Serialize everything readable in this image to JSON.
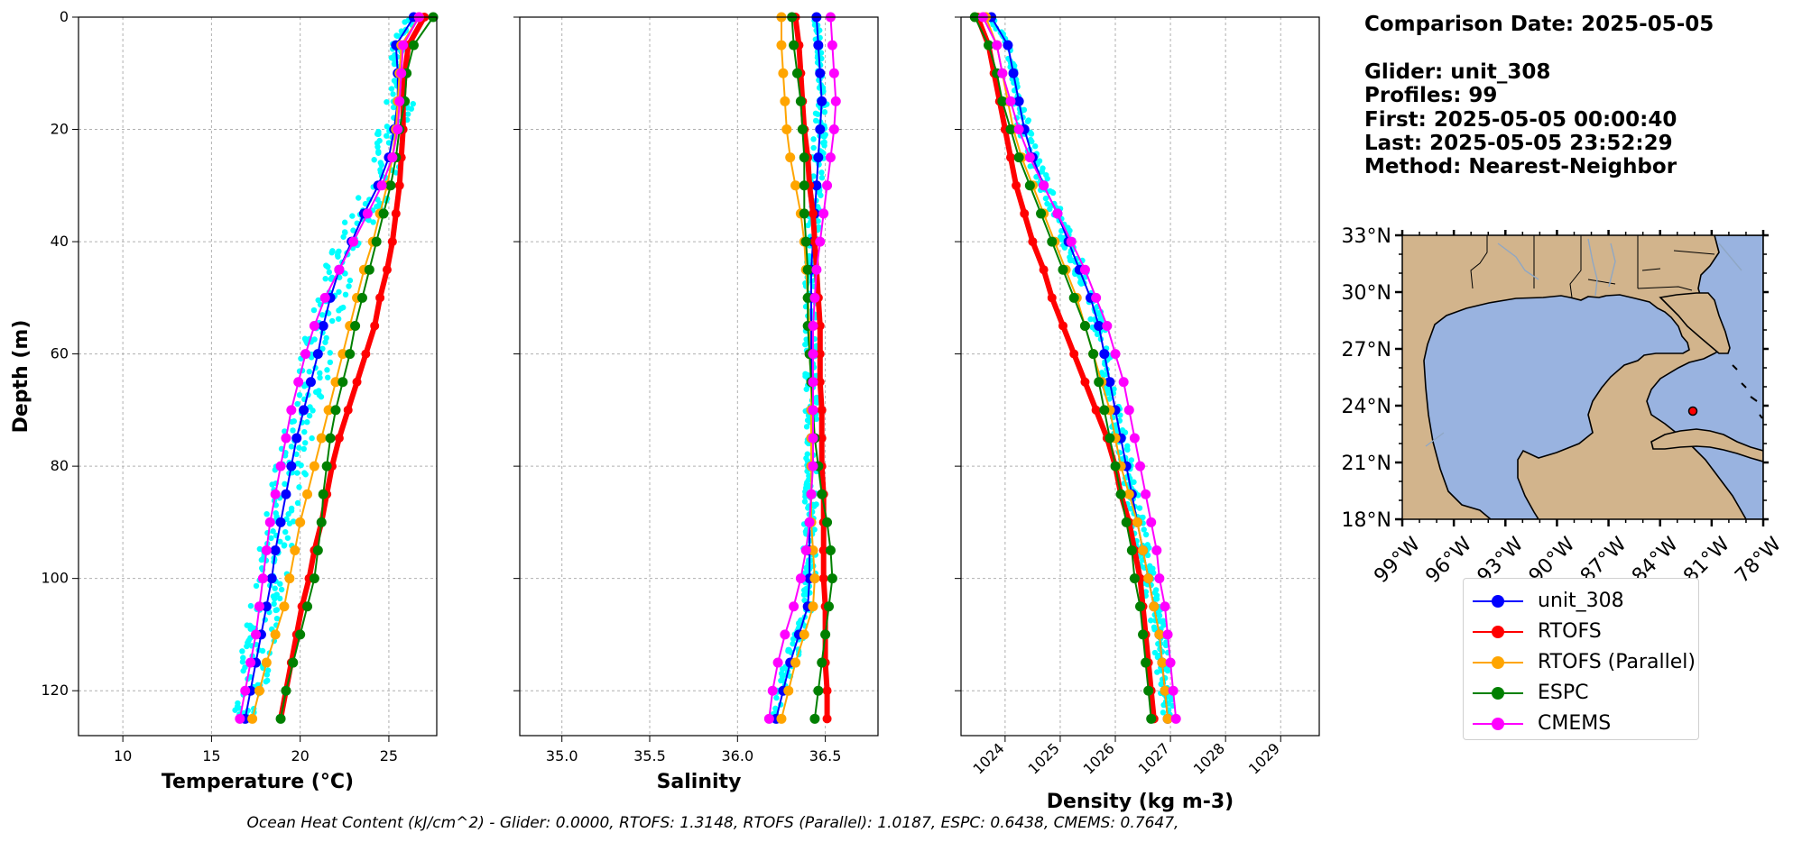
{
  "info": {
    "comparison_date": "Comparison Date: 2025-05-05",
    "glider": "Glider: unit_308",
    "profiles": "Profiles: 99",
    "first": "First: 2025-05-05 00:00:40",
    "last": "Last: 2025-05-05 23:52:29",
    "method": "Method: Nearest-Neighbor"
  },
  "footer": "Ocean Heat Content (kJ/cm^2) - Glider: 0.0000,  RTOFS: 1.3148,  RTOFS (Parallel): 1.0187,  ESPC: 0.6438,  CMEMS: 0.7647,",
  "colors": {
    "unit_308": "#0000ff",
    "RTOFS": "#ff0000",
    "RTOFS (Parallel)": "#ffa500",
    "ESPC": "#008000",
    "CMEMS": "#ff00ff",
    "glider_scatter": "#00ffff",
    "land": "#d2b48c",
    "ocean": "#99b3e0"
  },
  "legend": [
    "unit_308",
    "RTOFS",
    "RTOFS (Parallel)",
    "ESPC",
    "CMEMS"
  ],
  "chart_data": [
    {
      "type": "line",
      "xlabel": "Temperature (°C)",
      "ylabel": "Depth (m)",
      "xlim": [
        7.5,
        27.7
      ],
      "ylim": [
        128,
        0
      ],
      "xticks": [
        10,
        15,
        20,
        25
      ],
      "yticks": [
        0,
        20,
        40,
        60,
        80,
        100,
        120
      ],
      "grid": true,
      "depth": [
        0,
        5,
        10,
        15,
        20,
        25,
        30,
        35,
        40,
        45,
        50,
        55,
        60,
        65,
        70,
        75,
        80,
        85,
        90,
        95,
        100,
        105,
        110,
        115,
        120,
        125
      ],
      "series": [
        {
          "name": "unit_308",
          "values": [
            26.4,
            25.4,
            25.5,
            25.5,
            25.3,
            25.0,
            24.4,
            23.6,
            22.9,
            22.2,
            21.7,
            21.3,
            21.0,
            20.6,
            20.2,
            19.8,
            19.5,
            19.2,
            18.9,
            18.6,
            18.4,
            18.1,
            17.8,
            17.5,
            17.2,
            16.9
          ]
        },
        {
          "name": "RTOFS",
          "values": [
            27.0,
            26.1,
            25.9,
            25.8,
            25.8,
            25.7,
            25.6,
            25.4,
            25.2,
            24.9,
            24.5,
            24.2,
            23.7,
            23.2,
            22.7,
            22.2,
            21.8,
            21.5,
            21.2,
            20.8,
            20.5,
            20.1,
            19.8,
            19.5,
            19.2,
            18.9
          ]
        },
        {
          "name": "RTOFS (Parallel)",
          "values": [
            26.7,
            25.7,
            25.6,
            25.5,
            25.4,
            25.2,
            24.9,
            24.5,
            24.1,
            23.6,
            23.2,
            22.8,
            22.4,
            22.0,
            21.6,
            21.2,
            20.8,
            20.4,
            20.0,
            19.7,
            19.4,
            19.1,
            18.6,
            18.1,
            17.7,
            17.3
          ]
        },
        {
          "name": "ESPC",
          "values": [
            27.5,
            26.4,
            26.0,
            25.9,
            25.6,
            25.4,
            25.1,
            24.7,
            24.3,
            23.9,
            23.5,
            23.1,
            22.8,
            22.4,
            22.0,
            21.7,
            21.5,
            21.3,
            21.2,
            21.0,
            20.8,
            20.4,
            20.0,
            19.6,
            19.2,
            18.9
          ]
        },
        {
          "name": "CMEMS",
          "values": [
            26.7,
            25.8,
            25.7,
            25.6,
            25.5,
            25.2,
            24.6,
            23.8,
            23.0,
            22.2,
            21.4,
            20.8,
            20.3,
            19.9,
            19.5,
            19.2,
            18.9,
            18.6,
            18.3,
            18.1,
            17.9,
            17.7,
            17.5,
            17.2,
            16.9,
            16.6
          ]
        }
      ]
    },
    {
      "type": "line",
      "xlabel": "Salinity",
      "ylim": [
        128,
        0
      ],
      "xlim": [
        34.76,
        36.8
      ],
      "xticks": [
        35.0,
        35.5,
        36.0,
        36.5
      ],
      "grid": true,
      "depth": [
        0,
        5,
        10,
        15,
        20,
        25,
        30,
        35,
        40,
        45,
        50,
        55,
        60,
        65,
        70,
        75,
        80,
        85,
        90,
        95,
        100,
        105,
        110,
        115,
        120,
        125
      ],
      "series": [
        {
          "name": "unit_308",
          "values": [
            36.45,
            36.46,
            36.47,
            36.48,
            36.47,
            36.46,
            36.45,
            36.44,
            36.43,
            36.42,
            36.42,
            36.42,
            36.42,
            36.42,
            36.42,
            36.42,
            36.42,
            36.42,
            36.41,
            36.41,
            36.41,
            36.4,
            36.35,
            36.3,
            36.26,
            36.22
          ]
        },
        {
          "name": "RTOFS",
          "values": [
            36.33,
            36.35,
            36.36,
            36.37,
            36.38,
            36.4,
            36.41,
            36.43,
            36.44,
            36.45,
            36.46,
            36.47,
            36.47,
            36.47,
            36.48,
            36.48,
            36.48,
            36.49,
            36.49,
            36.49,
            36.49,
            36.5,
            36.5,
            36.5,
            36.51,
            36.51
          ]
        },
        {
          "name": "RTOFS (Parallel)",
          "values": [
            36.25,
            36.25,
            36.26,
            36.27,
            36.28,
            36.3,
            36.33,
            36.36,
            36.38,
            36.39,
            36.4,
            36.41,
            36.41,
            36.42,
            36.42,
            36.42,
            36.42,
            36.42,
            36.42,
            36.43,
            36.44,
            36.43,
            36.38,
            36.33,
            36.29,
            36.25
          ]
        },
        {
          "name": "ESPC",
          "values": [
            36.31,
            36.32,
            36.34,
            36.36,
            36.37,
            36.38,
            36.38,
            36.38,
            36.39,
            36.4,
            36.4,
            36.4,
            36.41,
            36.42,
            36.43,
            36.44,
            36.46,
            36.48,
            36.51,
            36.53,
            36.54,
            36.52,
            36.5,
            36.48,
            36.46,
            36.44
          ]
        },
        {
          "name": "CMEMS",
          "values": [
            36.53,
            36.54,
            36.55,
            36.56,
            36.55,
            36.53,
            36.51,
            36.49,
            36.47,
            36.45,
            36.44,
            36.43,
            36.43,
            36.43,
            36.43,
            36.43,
            36.43,
            36.42,
            36.41,
            36.39,
            36.36,
            36.32,
            36.27,
            36.23,
            36.2,
            36.18
          ]
        }
      ]
    },
    {
      "type": "line",
      "xlabel": "Density (kg m-3)",
      "ylim": [
        128,
        0
      ],
      "xlim": [
        1023.2,
        1029.7
      ],
      "xticks": [
        1024,
        1025,
        1026,
        1027,
        1028,
        1029
      ],
      "grid": true,
      "depth": [
        0,
        5,
        10,
        15,
        20,
        25,
        30,
        35,
        40,
        45,
        50,
        55,
        60,
        65,
        70,
        75,
        80,
        85,
        90,
        95,
        100,
        105,
        110,
        115,
        120,
        125
      ],
      "series": [
        {
          "name": "unit_308",
          "values": [
            1023.75,
            1024.05,
            1024.15,
            1024.25,
            1024.35,
            1024.5,
            1024.7,
            1024.95,
            1025.15,
            1025.35,
            1025.55,
            1025.7,
            1025.8,
            1025.9,
            1026.0,
            1026.1,
            1026.2,
            1026.3,
            1026.4,
            1026.5,
            1026.6,
            1026.7,
            1026.8,
            1026.85,
            1026.9,
            1026.95
          ]
        },
        {
          "name": "RTOFS",
          "values": [
            1023.5,
            1023.7,
            1023.8,
            1023.9,
            1024.0,
            1024.1,
            1024.2,
            1024.35,
            1024.5,
            1024.7,
            1024.85,
            1025.05,
            1025.25,
            1025.45,
            1025.65,
            1025.85,
            1026.0,
            1026.1,
            1026.25,
            1026.35,
            1026.45,
            1026.5,
            1026.55,
            1026.6,
            1026.65,
            1026.7
          ]
        },
        {
          "name": "RTOFS (Parallel)",
          "values": [
            1023.65,
            1023.85,
            1023.95,
            1024.05,
            1024.15,
            1024.3,
            1024.5,
            1024.7,
            1024.9,
            1025.1,
            1025.3,
            1025.45,
            1025.6,
            1025.75,
            1025.9,
            1026.0,
            1026.1,
            1026.25,
            1026.4,
            1026.5,
            1026.6,
            1026.7,
            1026.8,
            1026.85,
            1026.9,
            1026.95
          ]
        },
        {
          "name": "ESPC",
          "values": [
            1023.45,
            1023.7,
            1023.85,
            1023.95,
            1024.1,
            1024.25,
            1024.45,
            1024.65,
            1024.85,
            1025.05,
            1025.25,
            1025.45,
            1025.6,
            1025.7,
            1025.8,
            1025.9,
            1026.0,
            1026.1,
            1026.2,
            1026.3,
            1026.35,
            1026.45,
            1026.5,
            1026.55,
            1026.6,
            1026.65
          ]
        },
        {
          "name": "CMEMS",
          "values": [
            1023.6,
            1023.85,
            1023.95,
            1024.1,
            1024.25,
            1024.45,
            1024.7,
            1024.95,
            1025.2,
            1025.45,
            1025.65,
            1025.85,
            1026.0,
            1026.15,
            1026.25,
            1026.35,
            1026.45,
            1026.55,
            1026.65,
            1026.75,
            1026.8,
            1026.9,
            1026.95,
            1027.0,
            1027.05,
            1027.1
          ]
        }
      ]
    }
  ],
  "map": {
    "lon_ticks": [
      "99°W",
      "96°W",
      "93°W",
      "90°W",
      "87°W",
      "84°W",
      "81°W",
      "78°W"
    ],
    "lat_ticks": [
      "33°N",
      "30°N",
      "27°N",
      "24°N",
      "21°N",
      "18°N"
    ],
    "lon_range": [
      -99,
      -78
    ],
    "lat_range": [
      18,
      33
    ],
    "glider_position": {
      "lon": -83.8,
      "lat": 24.0
    }
  }
}
